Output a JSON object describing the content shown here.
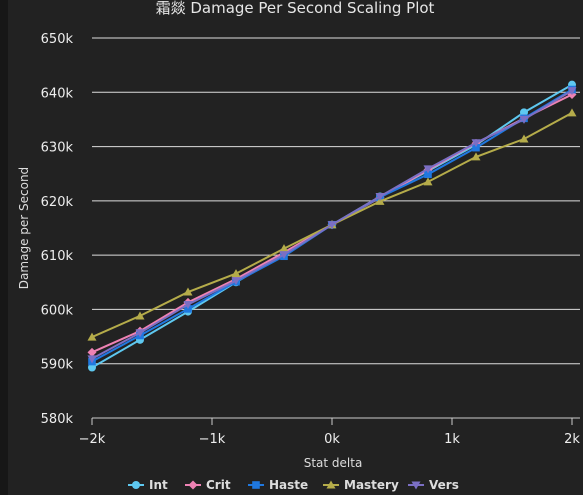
{
  "chart_data": {
    "type": "line",
    "title": "霜燚 Damage Per Second Scaling Plot",
    "xlabel": "Stat delta",
    "ylabel": "Damage per Second",
    "x": [
      -2000,
      -1600,
      -1200,
      -800,
      -400,
      0,
      400,
      800,
      1200,
      1600,
      2000
    ],
    "xlim": [
      -2000,
      2000
    ],
    "ylim": [
      580000,
      650000
    ],
    "x_ticks": [
      -2000,
      -1000,
      0,
      1000,
      2000
    ],
    "x_tick_labels": [
      "−2k",
      "−1k",
      "0k",
      "1k",
      "2k"
    ],
    "y_ticks": [
      580000,
      590000,
      600000,
      610000,
      620000,
      630000,
      640000,
      650000
    ],
    "y_tick_labels": [
      "580k",
      "590k",
      "600k",
      "610k",
      "620k",
      "630k",
      "640k",
      "650k"
    ],
    "grid": "horizontal",
    "legend_position": "bottom",
    "series": [
      {
        "name": "Int",
        "color": "#5ec8f0",
        "marker": "circle",
        "values": [
          589300,
          594400,
          599600,
          605000,
          610200,
          615600,
          620800,
          625500,
          630300,
          636300,
          641400
        ]
      },
      {
        "name": "Crit",
        "color": "#ee82b4",
        "marker": "diamond",
        "values": [
          592100,
          596000,
          601300,
          605600,
          610500,
          615600,
          620600,
          625700,
          630600,
          635200,
          639600
        ]
      },
      {
        "name": "Haste",
        "color": "#1f78e0",
        "marker": "square",
        "values": [
          590400,
          595200,
          600100,
          605100,
          609800,
          615600,
          620700,
          624900,
          629800,
          635200,
          640500
        ]
      },
      {
        "name": "Mastery",
        "color": "#b5ac4a",
        "marker": "triangle",
        "values": [
          594900,
          598800,
          603200,
          606600,
          611200,
          615600,
          619900,
          623500,
          628100,
          631400,
          636200
        ]
      },
      {
        "name": "Vers",
        "color": "#7b6fc4",
        "marker": "triangle-down",
        "values": [
          590900,
          595700,
          600900,
          605300,
          610100,
          615600,
          620800,
          625900,
          630700,
          635000,
          640300
        ]
      }
    ]
  }
}
